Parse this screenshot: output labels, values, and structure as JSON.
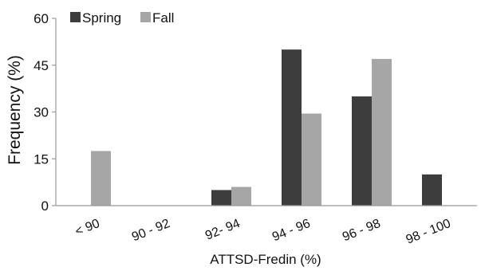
{
  "chart_data": {
    "type": "bar",
    "categories": [
      "< 90",
      "90 - 92",
      "92- 94",
      "94 - 96",
      "96 - 98",
      "98 - 100"
    ],
    "series": [
      {
        "name": "Spring",
        "values": [
          0,
          0,
          5,
          50,
          35,
          10
        ],
        "color": "#3d3d3d"
      },
      {
        "name": "Fall",
        "values": [
          17.5,
          0,
          6,
          29.5,
          47,
          0
        ],
        "color": "#a6a6a6"
      }
    ],
    "xlabel": "ATTSD-Fredin (%)",
    "ylabel": "Frequency (%)",
    "ylim": [
      0,
      60
    ],
    "yticks": [
      "0",
      "15",
      "30",
      "45",
      "60"
    ],
    "legend_position": "top-left",
    "grid": false
  }
}
